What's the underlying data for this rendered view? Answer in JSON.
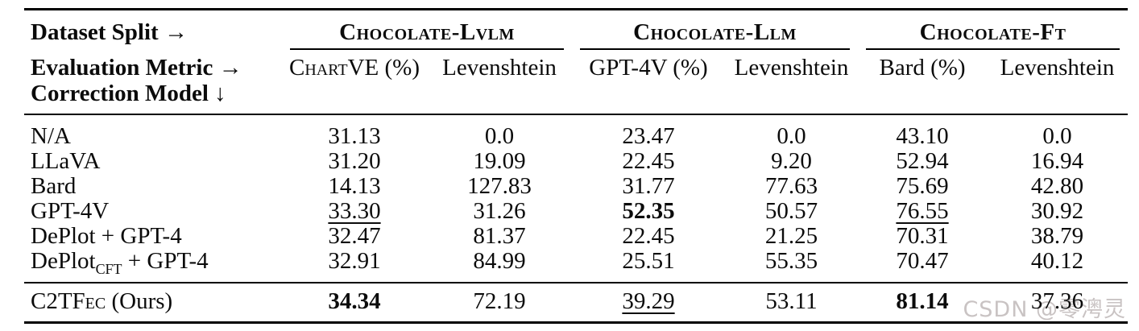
{
  "table": {
    "corner": {
      "dataset_split": "Dataset Split →",
      "evaluation_metric": "Evaluation Metric →",
      "correction_model": "Correction Model ↓"
    },
    "groups": [
      {
        "label": "Chocolate-Lvlm"
      },
      {
        "label": "Chocolate-Llm"
      },
      {
        "label": "Chocolate-Ft"
      }
    ],
    "metrics": [
      "ChartVE (%)",
      "Levenshtein",
      "GPT-4V (%)",
      "Levenshtein",
      "Bard (%)",
      "Levenshtein"
    ],
    "rows": [
      {
        "label": {
          "main": "N/A"
        },
        "values": [
          "31.13",
          "0.0",
          "23.47",
          "0.0",
          "43.10",
          "0.0"
        ]
      },
      {
        "label": {
          "main": "LLaVA"
        },
        "values": [
          "31.20",
          "19.09",
          "22.45",
          "9.20",
          "52.94",
          "16.94"
        ]
      },
      {
        "label": {
          "main": "Bard"
        },
        "values": [
          "14.13",
          "127.83",
          "31.77",
          "77.63",
          "75.69",
          "42.80"
        ]
      },
      {
        "label": {
          "main": "GPT-4V"
        },
        "values": [
          "33.30",
          "31.26",
          "52.35",
          "50.57",
          "76.55",
          "30.92"
        ]
      },
      {
        "label": {
          "main": "DePlot + GPT-4"
        },
        "values": [
          "32.47",
          "81.37",
          "22.45",
          "21.25",
          "70.31",
          "38.79"
        ]
      },
      {
        "label": {
          "main": "DePlot",
          "sub": "CFT",
          "rest": " + GPT-4"
        },
        "values": [
          "32.91",
          "84.99",
          "25.51",
          "55.35",
          "70.47",
          "40.12"
        ]
      }
    ],
    "final_row": {
      "label": {
        "sc": "C2TFec",
        "rest": " (Ours)"
      },
      "values": [
        "34.34",
        "72.19",
        "39.29",
        "53.11",
        "81.14",
        "37.36"
      ]
    }
  },
  "watermark": "CSDN @零澚灵"
}
